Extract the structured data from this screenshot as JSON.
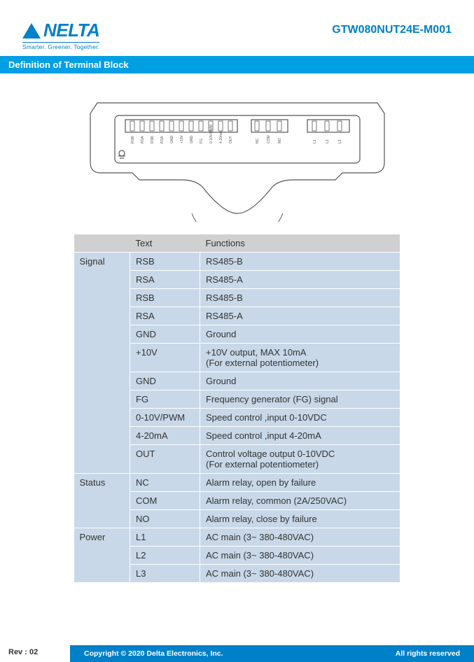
{
  "header": {
    "brand": "NELTA",
    "tagline": "Smarter.  Greener.  Together.",
    "model": "GTW080NUT24E-M001"
  },
  "section_title": "Definition of Terminal Block",
  "table": {
    "headers": [
      "",
      "Text",
      "Functions"
    ],
    "groups": [
      {
        "name": "Signal",
        "rows": [
          {
            "text": "RSB",
            "func": "RS485-B"
          },
          {
            "text": "RSA",
            "func": "RS485-A"
          },
          {
            "text": "RSB",
            "func": "RS485-B"
          },
          {
            "text": "RSA",
            "func": "RS485-A"
          },
          {
            "text": "GND",
            "func": "Ground"
          },
          {
            "text": "+10V",
            "func": "+10V output, MAX 10mA\n(For external potentiometer)"
          },
          {
            "text": "GND",
            "func": "Ground"
          },
          {
            "text": "FG",
            "func": "Frequency generator (FG) signal"
          },
          {
            "text": "0-10V/PWM",
            "func": "Speed control ,input 0-10VDC"
          },
          {
            "text": "4-20mA",
            "func": "Speed control ,input 4-20mA"
          },
          {
            "text": "OUT",
            "func": "Control voltage output 0-10VDC\n(For external potentiometer)"
          }
        ]
      },
      {
        "name": "Status",
        "rows": [
          {
            "text": "NC",
            "func": "Alarm relay, open by failure"
          },
          {
            "text": "COM",
            "func": "Alarm relay, common (2A/250VAC)"
          },
          {
            "text": "NO",
            "func": "Alarm relay, close by failure"
          }
        ]
      },
      {
        "name": "Power",
        "rows": [
          {
            "text": "L1",
            "func": "AC main (3~ 380-480VAC)"
          },
          {
            "text": "L2",
            "func": "AC main (3~ 380-480VAC)"
          },
          {
            "text": "L3",
            "func": "AC main (3~ 380-480VAC)"
          }
        ]
      }
    ]
  },
  "diagram": {
    "stroke": "#555",
    "signal_labels": [
      "RSB",
      "RSA",
      "RSB",
      "RSA",
      "GND",
      "+10V",
      "GND",
      "FG",
      "0-10V/PWM",
      "4-20mA",
      "OUT"
    ],
    "status_labels": [
      "NC",
      "COM",
      "NO"
    ],
    "power_labels": [
      "L1",
      "L2",
      "L3"
    ]
  },
  "footer": {
    "rev": "Rev : 02",
    "copyright": "Copyright © 2020 Delta Electronics, Inc.",
    "rights": "All rights reserved"
  },
  "colors": {
    "brand_blue": "#0080c8",
    "bar_blue": "#009fe3",
    "cell_bg": "#c8d8e8",
    "header_bg": "#d0d0d0"
  }
}
